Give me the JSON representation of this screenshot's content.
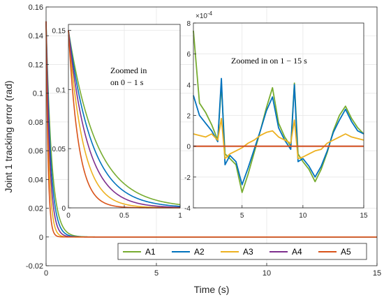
{
  "chart_data": [
    {
      "type": "line",
      "role": "main",
      "xlabel": "Time (s)",
      "ylabel": "Joint 1 tracking error (rad)",
      "xlim": [
        0,
        15
      ],
      "ylim": [
        -0.02,
        0.16
      ],
      "x_ticks": [
        0,
        5,
        10,
        15
      ],
      "y_ticks": [
        -0.02,
        0,
        0.02,
        0.04,
        0.06,
        0.08,
        0.1,
        0.12,
        0.14,
        0.16
      ],
      "y_tick_labels": [
        "-0.02",
        "0",
        "0.02",
        "0.04",
        "0.06",
        "0.08",
        "0.1",
        "0.12",
        "0.14",
        "0.16"
      ],
      "grid": true,
      "legend_position": "bottom-right",
      "series": [
        {
          "name": "A1",
          "color": "#77AC30",
          "decay_time_constant_s": 0.25,
          "x": [
            0,
            0.25,
            0.5,
            0.75,
            1.0,
            1.5,
            15
          ],
          "y": [
            0.15,
            0.06,
            0.02,
            0.008,
            0.003,
            0.0005,
            0
          ]
        },
        {
          "name": "A2",
          "color": "#0072BD",
          "decay_time_constant_s": 0.21,
          "x": [
            0,
            0.25,
            0.5,
            0.75,
            1.0,
            1.5,
            15
          ],
          "y": [
            0.15,
            0.05,
            0.015,
            0.005,
            0.002,
            0.0003,
            0
          ]
        },
        {
          "name": "A3",
          "color": "#EDB120",
          "decay_time_constant_s": 0.13,
          "x": [
            0,
            0.25,
            0.5,
            0.75,
            1.0,
            15
          ],
          "y": [
            0.15,
            0.022,
            0.003,
            0.0005,
            0.0001,
            0
          ]
        },
        {
          "name": "A4",
          "color": "#7E2F8E",
          "decay_time_constant_s": 0.17,
          "x": [
            0,
            0.25,
            0.5,
            0.75,
            1.0,
            15
          ],
          "y": [
            0.15,
            0.035,
            0.008,
            0.002,
            0.0005,
            0
          ]
        },
        {
          "name": "A5",
          "color": "#D95319",
          "decay_time_constant_s": 0.09,
          "x": [
            0,
            0.25,
            0.5,
            0.75,
            15
          ],
          "y": [
            0.15,
            0.012,
            0.001,
            0.0001,
            0
          ]
        }
      ]
    },
    {
      "type": "line",
      "role": "inset-left",
      "annotation": "Zoomed in on 0 − 1 s",
      "annotation_lines": [
        "Zoomed in",
        "on 0 − 1 s"
      ],
      "xlim": [
        0,
        1
      ],
      "ylim": [
        0,
        0.155
      ],
      "x_ticks": [
        0,
        0.5,
        1
      ],
      "x_tick_labels": [
        "0",
        "0.5",
        "1"
      ],
      "y_ticks": [
        0,
        0.05,
        0.1,
        0.15
      ],
      "y_tick_labels": [
        "0",
        "0.05",
        "0.1",
        "0.15"
      ]
    },
    {
      "type": "line",
      "role": "inset-right",
      "annotation": "Zoomed in on 1 − 15 s",
      "exponent_label": "×10",
      "exponent_power": "-4",
      "xlim": [
        1,
        15
      ],
      "ylim": [
        -4,
        8
      ],
      "x_ticks": [
        5,
        10,
        15
      ],
      "x_tick_labels": [
        "5",
        "10",
        "15"
      ],
      "y_ticks": [
        -4,
        -2,
        0,
        2,
        4,
        6,
        8
      ],
      "y_tick_labels": [
        "-4",
        "-2",
        "0",
        "2",
        "4",
        "6",
        "8"
      ],
      "series": [
        {
          "name": "A1",
          "color": "#77AC30",
          "x": [
            1,
            1.5,
            2,
            2.5,
            3,
            3.3,
            3.6,
            4,
            4.5,
            5,
            5.5,
            6,
            6.5,
            7,
            7.5,
            8,
            8.5,
            9,
            9.3,
            9.6,
            10,
            10.5,
            11,
            11.5,
            12,
            12.5,
            13,
            13.5,
            14,
            14.5,
            15
          ],
          "y": [
            7.5,
            2.8,
            2.2,
            1.4,
            0.4,
            4.0,
            -0.5,
            -0.8,
            -1.2,
            -3.0,
            -1.8,
            -0.4,
            1.0,
            2.5,
            3.8,
            1.5,
            0.6,
            0.0,
            4.1,
            -0.5,
            -1.0,
            -1.5,
            -2.3,
            -1.5,
            -0.4,
            1.0,
            2.0,
            2.6,
            1.8,
            1.2,
            0.8
          ]
        },
        {
          "name": "A2",
          "color": "#0072BD",
          "x": [
            1,
            1.5,
            2,
            2.5,
            3,
            3.3,
            3.6,
            4,
            4.5,
            5,
            5.5,
            6,
            6.5,
            7,
            7.5,
            8,
            8.5,
            9,
            9.3,
            9.6,
            10,
            10.5,
            11,
            11.5,
            12,
            12.5,
            13,
            13.5,
            14,
            14.5,
            15
          ],
          "y": [
            3.3,
            2.0,
            1.5,
            1.0,
            0.3,
            4.4,
            -1.2,
            -0.6,
            -1.0,
            -2.5,
            -1.4,
            -0.2,
            1.0,
            2.3,
            3.2,
            1.2,
            0.4,
            -0.2,
            4.0,
            -1.0,
            -0.8,
            -1.3,
            -2.0,
            -1.3,
            -0.3,
            0.9,
            1.7,
            2.4,
            1.6,
            1.0,
            0.8
          ]
        },
        {
          "name": "A3",
          "color": "#EDB120",
          "x": [
            1,
            1.5,
            2,
            2.5,
            3,
            3.3,
            3.6,
            4,
            4.5,
            5,
            5.5,
            6,
            6.5,
            7,
            7.5,
            8,
            8.5,
            9,
            9.3,
            9.6,
            10,
            10.5,
            11,
            11.5,
            12,
            12.5,
            13,
            13.5,
            14,
            14.5,
            15
          ],
          "y": [
            0.8,
            0.7,
            0.6,
            0.8,
            0.4,
            1.8,
            -0.8,
            -0.5,
            -0.3,
            -0.1,
            0.2,
            0.4,
            0.7,
            0.9,
            1.0,
            0.6,
            0.4,
            0.2,
            1.7,
            -0.8,
            -0.7,
            -0.5,
            -0.3,
            -0.2,
            0.2,
            0.4,
            0.6,
            0.8,
            0.6,
            0.5,
            0.4
          ]
        },
        {
          "name": "A4",
          "color": "#7E2F8E",
          "x": [
            1,
            15
          ],
          "y": [
            0.0,
            0.0
          ]
        },
        {
          "name": "A5",
          "color": "#D95319",
          "x": [
            1,
            15
          ],
          "y": [
            0.0,
            0.0
          ]
        }
      ]
    }
  ]
}
